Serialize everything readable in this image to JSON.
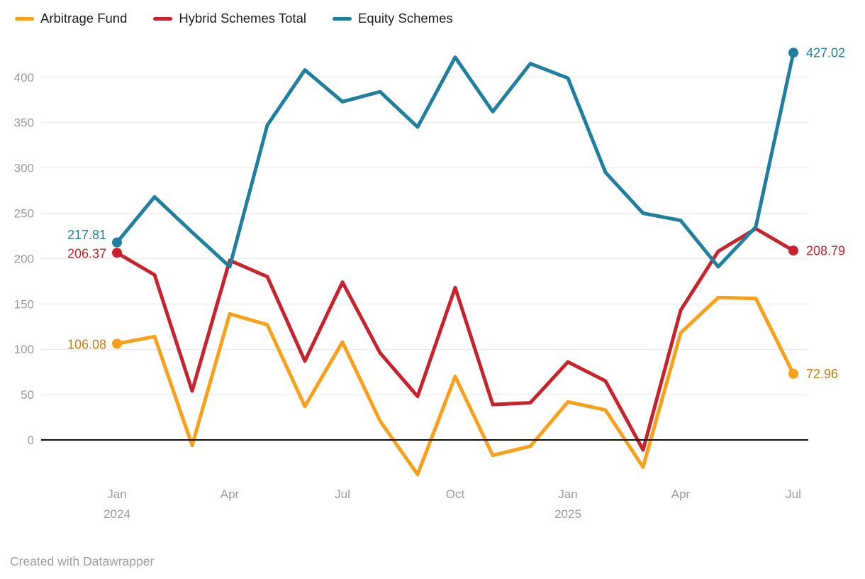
{
  "legend": {
    "items": [
      {
        "label": "Arbitrage Fund",
        "color": "#f8a018"
      },
      {
        "label": "Hybrid Schemes Total",
        "color": "#c8232c"
      },
      {
        "label": "Equity Schemes",
        "color": "#1f7f9e"
      }
    ]
  },
  "footer": {
    "credit": "Created with Datawrapper"
  },
  "chart_data": {
    "type": "line",
    "title": "",
    "xlabel": "",
    "ylabel": "",
    "grid": "horizontal",
    "legend_position": "top-left",
    "ylim": [
      -45,
      435
    ],
    "y_ticks": [
      0,
      50,
      100,
      150,
      200,
      250,
      300,
      350,
      400
    ],
    "x": [
      "Jan 2024",
      "Feb 2024",
      "Mar 2024",
      "Apr 2024",
      "May 2024",
      "Jun 2024",
      "Jul 2024",
      "Aug 2024",
      "Sep 2024",
      "Oct 2024",
      "Nov 2024",
      "Dec 2024",
      "Jan 2025",
      "Feb 2025",
      "Mar 2025",
      "Apr 2025",
      "May 2025",
      "Jun 2025",
      "Jul 2025"
    ],
    "x_ticks": [
      {
        "label": "Jan",
        "year": "2024",
        "index": 0
      },
      {
        "label": "Apr",
        "year": "",
        "index": 3
      },
      {
        "label": "Jul",
        "year": "",
        "index": 6
      },
      {
        "label": "Oct",
        "year": "",
        "index": 9
      },
      {
        "label": "Jan",
        "year": "2025",
        "index": 12
      },
      {
        "label": "Apr",
        "year": "",
        "index": 15
      },
      {
        "label": "Jul",
        "year": "",
        "index": 18
      }
    ],
    "series": [
      {
        "name": "Arbitrage Fund",
        "color": "#f8a018",
        "label_color": "#c77d10",
        "start_label": "106.08",
        "end_label": "72.96",
        "values": [
          106.08,
          114,
          -6,
          139,
          127,
          37,
          108,
          21,
          -38,
          70,
          -17,
          -7,
          42,
          33,
          -30,
          118,
          157,
          156,
          72.96
        ]
      },
      {
        "name": "Hybrid Schemes Total",
        "color": "#c8232c",
        "label_color": "#c8232c",
        "start_label": "206.37",
        "end_label": "208.79",
        "values": [
          206.37,
          182,
          54,
          198,
          180,
          87,
          174,
          96,
          48,
          168,
          39,
          41,
          86,
          65,
          -11,
          143,
          208,
          233,
          208.79
        ]
      },
      {
        "name": "Equity Schemes",
        "color": "#1f7f9e",
        "label_color": "#1f7f9e",
        "start_label": "217.81",
        "end_label": "427.02",
        "values": [
          217.81,
          268,
          229,
          191,
          347,
          408,
          373,
          384,
          345,
          422,
          362,
          415,
          399,
          295,
          250,
          242,
          191,
          235,
          427.02
        ]
      }
    ]
  }
}
